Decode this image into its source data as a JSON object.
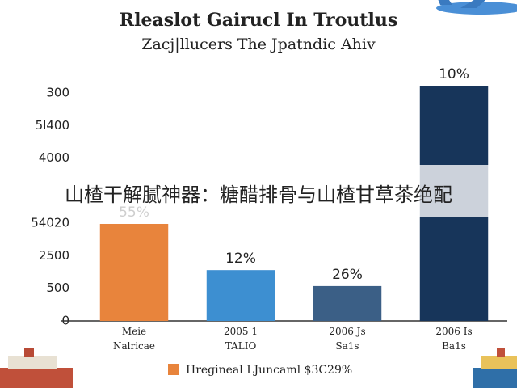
{
  "chart_data": {
    "type": "bar",
    "title": "Rleaslot Gairucl In Troutlus",
    "subtitle": "Zacj|llucers The Jpatndic Ahiv",
    "categories": [
      "Meie\nNalricae",
      "2005 1\nTALIO",
      "2006 Js\nSa1s",
      "2006 Is\nBa1s"
    ],
    "values": [
      2.98,
      1.56,
      1.07,
      7.22
    ],
    "bar_labels": [
      "55%",
      "12%",
      "26%",
      "10%"
    ],
    "colors": [
      "#e8843c",
      "#3d8fd1",
      "#3b5f86",
      "#17355a"
    ],
    "ylim": [
      0,
      7.4
    ],
    "yticks": [
      0,
      {
        "value": 1,
        "label": "500"
      },
      {
        "value": 2,
        "label": "2500"
      },
      {
        "value": 3,
        "label": "54020"
      },
      {
        "value": 5,
        "label": "4000"
      },
      {
        "value": 6,
        "label": "5l400"
      },
      {
        "value": 7,
        "label": "300"
      }
    ],
    "legend": {
      "label": "Hregineal LJuncaml $3C29%",
      "color": "#e8843c"
    }
  },
  "banner": {
    "text": "山楂干解腻神器：糖醋排骨与山楂甘草茶绝配"
  }
}
